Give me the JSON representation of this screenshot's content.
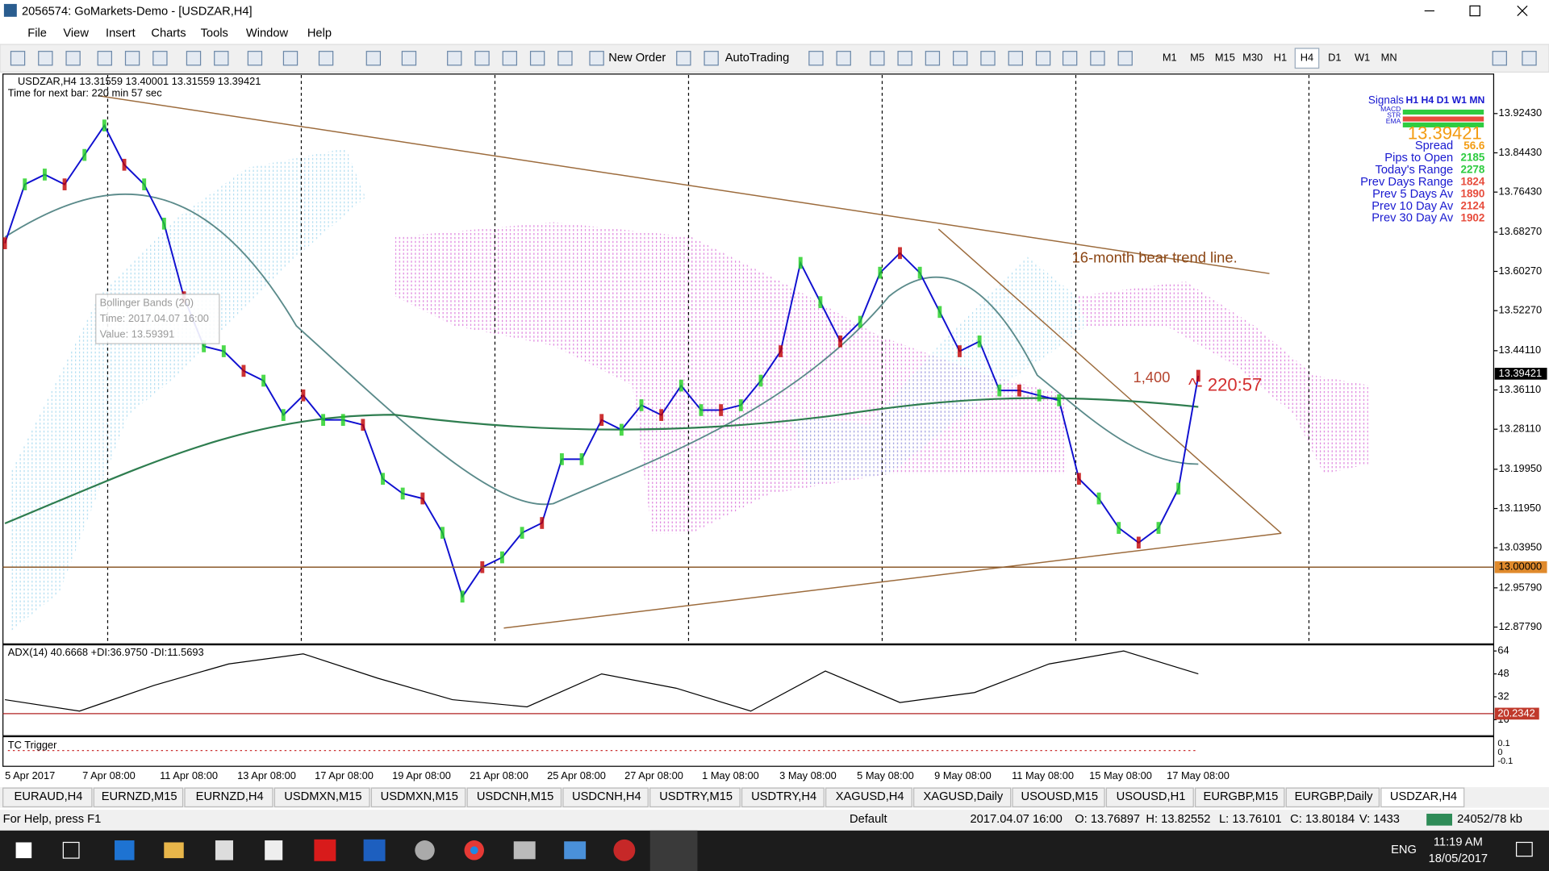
{
  "window": {
    "title": "2056574: GoMarkets-Demo - [USDZAR,H4]",
    "menu": [
      "File",
      "View",
      "Insert",
      "Charts",
      "Tools",
      "Window",
      "Help"
    ]
  },
  "toolbar": {
    "new_order": "New Order",
    "autotrading": "AutoTrading",
    "timeframes": [
      "M1",
      "M5",
      "M15",
      "M30",
      "H1",
      "H4",
      "D1",
      "W1",
      "MN"
    ]
  },
  "chart": {
    "header": "USDZAR,H4  13.31559 13.40001 13.31559 13.39421",
    "next_bar": "Time for next bar: 220 min 57 sec",
    "price_ticks": [
      "13.92430",
      "13.84430",
      "13.76430",
      "13.68270",
      "13.60270",
      "13.52270",
      "13.44110",
      "13.36110",
      "13.28110",
      "13.19950",
      "13.11950",
      "13.03950",
      "12.95790",
      "12.87790"
    ],
    "current_price": "13.39421",
    "level_price": "13.00000",
    "closes": [
      13.66,
      13.78,
      13.8,
      13.78,
      13.84,
      13.9,
      13.82,
      13.78,
      13.7,
      13.55,
      13.45,
      13.44,
      13.4,
      13.38,
      13.31,
      13.35,
      13.3,
      13.3,
      13.29,
      13.18,
      13.15,
      13.14,
      13.07,
      12.94,
      13.0,
      13.02,
      13.07,
      13.09,
      13.22,
      13.22,
      13.3,
      13.28,
      13.33,
      13.31,
      13.37,
      13.32,
      13.32,
      13.33,
      13.38,
      13.44,
      13.62,
      13.54,
      13.46,
      13.5,
      13.6,
      13.64,
      13.6,
      13.52,
      13.44,
      13.46,
      13.36,
      13.36,
      13.35,
      13.34,
      13.18,
      13.14,
      13.08,
      13.05,
      13.08,
      13.16,
      13.39
    ],
    "annotations": {
      "trend_line": "16-month bear trend line.",
      "pips": "1,400",
      "countdown": "^- 220:57"
    },
    "tooltip": [
      "Bollinger Bands (20)",
      "Time: 2017.04.07 16:00",
      "Value: 13.59391"
    ],
    "info_panel": {
      "signals": "Signals",
      "timeframes": "H1 H4 D1 W1 MN",
      "indicators": [
        "MACD",
        "STR",
        "EMA"
      ],
      "price": "13.39421",
      "rows": [
        {
          "label": "Spread",
          "value": "56.6"
        },
        {
          "label": "Pips to Open",
          "value": "2185"
        },
        {
          "label": "Today's Range",
          "value": "2278"
        },
        {
          "label": "Prev Days Range",
          "value": "1824"
        },
        {
          "label": "Prev 5 Days Av",
          "value": "1890"
        },
        {
          "label": "Prev 10 Day Av",
          "value": "2124"
        },
        {
          "label": "Prev 30 Day Av",
          "value": "1902"
        }
      ]
    },
    "time_labels": [
      "5 Apr 2017",
      "7 Apr 08:00",
      "11 Apr 08:00",
      "13 Apr 08:00",
      "17 Apr 08:00",
      "19 Apr 08:00",
      "21 Apr 08:00",
      "25 Apr 08:00",
      "27 Apr 08:00",
      "1 May 08:00",
      "3 May 08:00",
      "5 May 08:00",
      "9 May 08:00",
      "11 May 08:00",
      "15 May 08:00",
      "17 May 08:00"
    ]
  },
  "adx": {
    "header": "ADX(14) 40.6668 +DI:36.9750 -DI:11.5693",
    "ticks": [
      "64",
      "48",
      "32",
      "16"
    ],
    "level": "20.2342",
    "values": [
      30,
      22,
      40,
      55,
      62,
      45,
      30,
      25,
      48,
      38,
      22,
      50,
      28,
      35,
      55,
      64,
      48
    ]
  },
  "tc_trigger": {
    "header": "TC Trigger",
    "ticks": [
      "0.1",
      "0",
      "-0.1"
    ]
  },
  "tabs": [
    {
      "label": "EURAUD,H4"
    },
    {
      "label": "EURNZD,M15"
    },
    {
      "label": "EURNZD,H4"
    },
    {
      "label": "USDMXN,M15"
    },
    {
      "label": "USDMXN,M15"
    },
    {
      "label": "USDCNH,M15"
    },
    {
      "label": "USDCNH,H4"
    },
    {
      "label": "USDTRY,M15"
    },
    {
      "label": "USDTRY,H4"
    },
    {
      "label": "XAGUSD,H4"
    },
    {
      "label": "XAGUSD,Daily"
    },
    {
      "label": "USOUSD,M15"
    },
    {
      "label": "USOUSD,H1"
    },
    {
      "label": "EURGBP,M15"
    },
    {
      "label": "EURGBP,Daily"
    },
    {
      "label": "USDZAR,H4",
      "active": true
    }
  ],
  "status": {
    "help": "For Help, press F1",
    "profile": "Default",
    "time": "2017.04.07 16:00",
    "open": "O: 13.76897",
    "high": "H: 13.82552",
    "low": "L: 13.76101",
    "close": "C: 13.80184",
    "volume": "V: 1433",
    "traffic": "24052/78 kb"
  },
  "taskbar": {
    "language": "ENG",
    "time": "11:19 AM",
    "date": "18/05/2017"
  }
}
